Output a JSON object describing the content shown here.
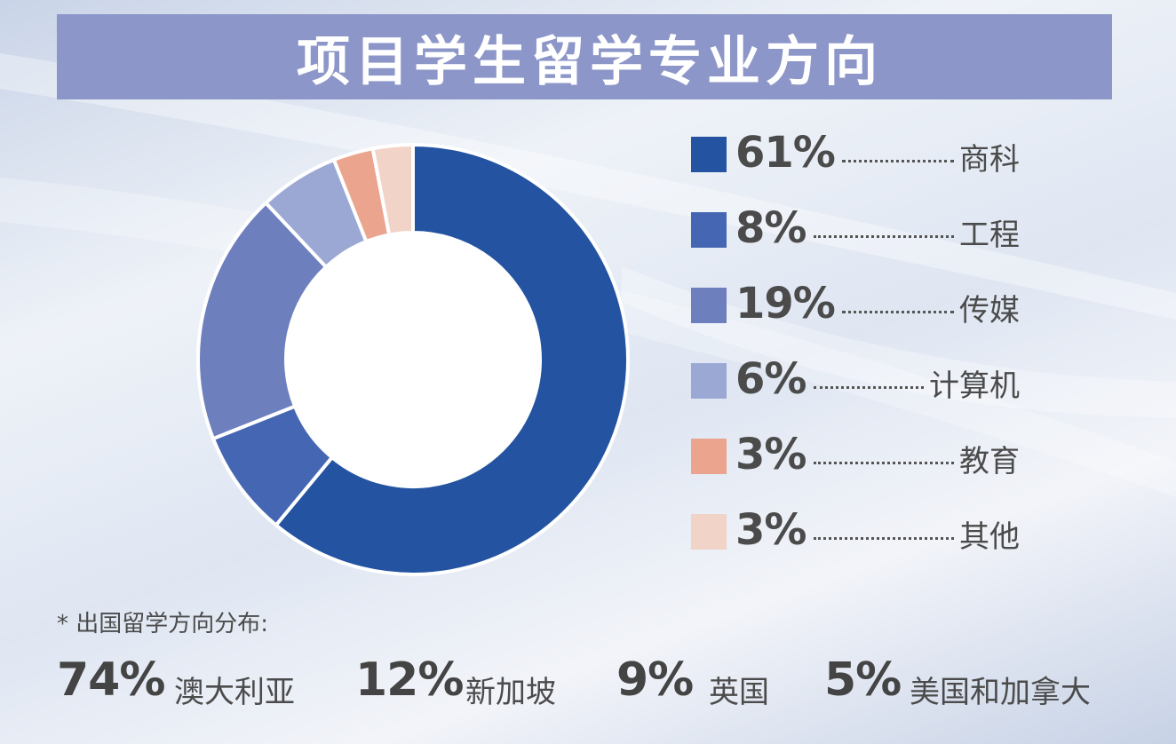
{
  "title": "项目学生留学专业方向",
  "chart_data": {
    "type": "pie",
    "donut": true,
    "categories": [
      "商科",
      "工程",
      "传媒",
      "计算机",
      "教育",
      "其他"
    ],
    "values": [
      61,
      8,
      19,
      6,
      3,
      3
    ],
    "labels": [
      "61%",
      "8%",
      "19%",
      "6%",
      "3%",
      "3%"
    ],
    "colors": [
      "#2353a1",
      "#4466b3",
      "#6e7fbe",
      "#9ba8d4",
      "#eba58f",
      "#f2d3c8"
    ],
    "legend_position": "right"
  },
  "note": "* 出国留学方向分布:",
  "destinations": [
    {
      "pct": "74%",
      "name": "澳大利亚"
    },
    {
      "pct": "12%",
      "name": "新加坡"
    },
    {
      "pct": "9%",
      "name": "英国"
    },
    {
      "pct": "5%",
      "name": "美国和加拿大"
    }
  ],
  "colors": {
    "title_bar": "#8c96c8",
    "title_text": "#ffffff",
    "text": "#4b4b4b"
  }
}
